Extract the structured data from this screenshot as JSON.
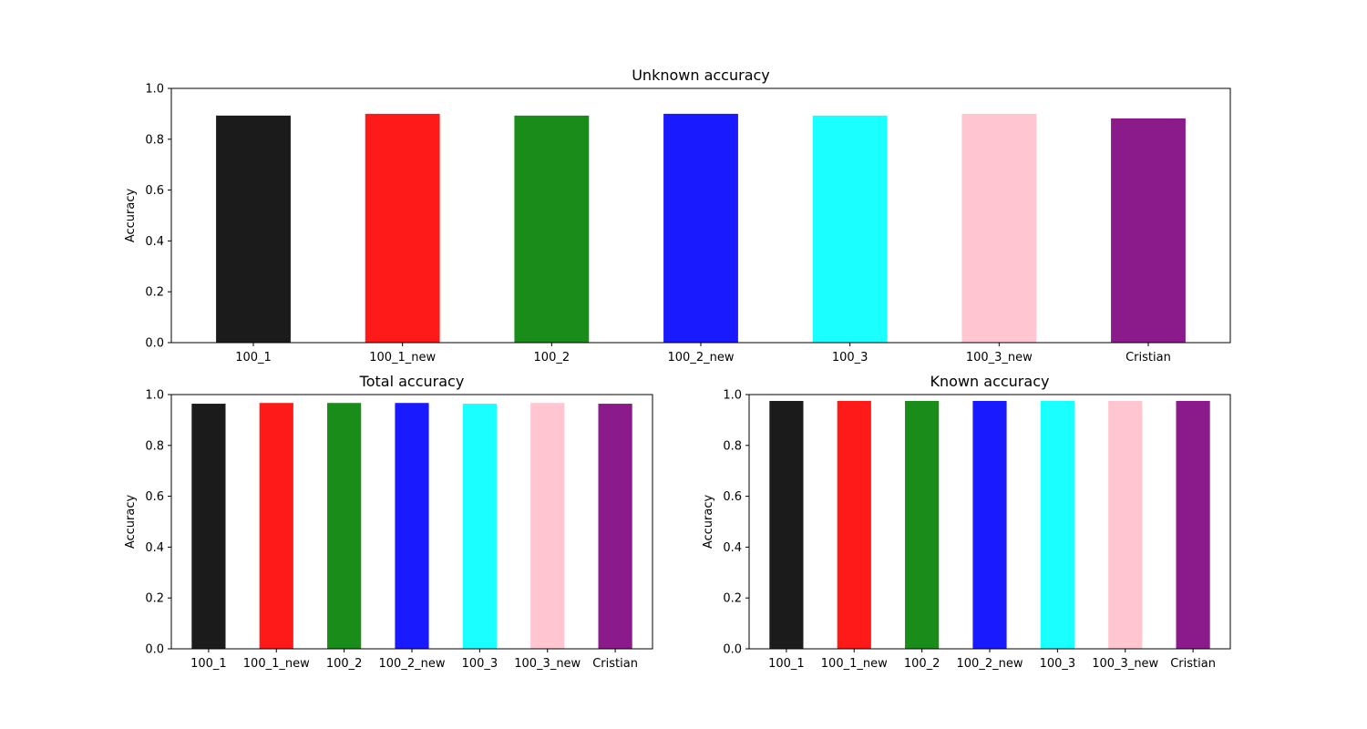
{
  "chart_data": [
    {
      "type": "bar",
      "title": "Unknown accuracy",
      "xlabel": "",
      "ylabel": "Accuracy",
      "ylim": [
        0,
        1.0
      ],
      "yticks": [
        "0.0",
        "0.2",
        "0.4",
        "0.6",
        "0.8",
        "1.0"
      ],
      "categories": [
        "100_1",
        "100_1_new",
        "100_2",
        "100_2_new",
        "100_3",
        "100_3_new",
        "Cristian"
      ],
      "values": [
        0.893,
        0.9,
        0.893,
        0.9,
        0.893,
        0.9,
        0.882
      ],
      "colors": [
        "#1b1b1b",
        "#ff1a1a",
        "#1a8c1a",
        "#1a1aff",
        "#1affff",
        "#ffc6d2",
        "#8b1a8b"
      ],
      "grid": false
    },
    {
      "type": "bar",
      "title": "Total accuracy",
      "xlabel": "",
      "ylabel": "Accuracy",
      "ylim": [
        0,
        1.0
      ],
      "yticks": [
        "0.0",
        "0.2",
        "0.4",
        "0.6",
        "0.8",
        "1.0"
      ],
      "categories": [
        "100_1",
        "100_1_new",
        "100_2",
        "100_2_new",
        "100_3",
        "100_3_new",
        "Cristian"
      ],
      "values": [
        0.964,
        0.967,
        0.967,
        0.967,
        0.964,
        0.967,
        0.964
      ],
      "colors": [
        "#1b1b1b",
        "#ff1a1a",
        "#1a8c1a",
        "#1a1aff",
        "#1affff",
        "#ffc6d2",
        "#8b1a8b"
      ],
      "grid": false
    },
    {
      "type": "bar",
      "title": "Known accuracy",
      "xlabel": "",
      "ylabel": "Accuracy",
      "ylim": [
        0,
        1.0
      ],
      "yticks": [
        "0.0",
        "0.2",
        "0.4",
        "0.6",
        "0.8",
        "1.0"
      ],
      "categories": [
        "100_1",
        "100_1_new",
        "100_2",
        "100_2_new",
        "100_3",
        "100_3_new",
        "Cristian"
      ],
      "values": [
        0.975,
        0.975,
        0.975,
        0.975,
        0.975,
        0.975,
        0.975
      ],
      "colors": [
        "#1b1b1b",
        "#ff1a1a",
        "#1a8c1a",
        "#1a1aff",
        "#1affff",
        "#ffc6d2",
        "#8b1a8b"
      ],
      "grid": false
    }
  ]
}
